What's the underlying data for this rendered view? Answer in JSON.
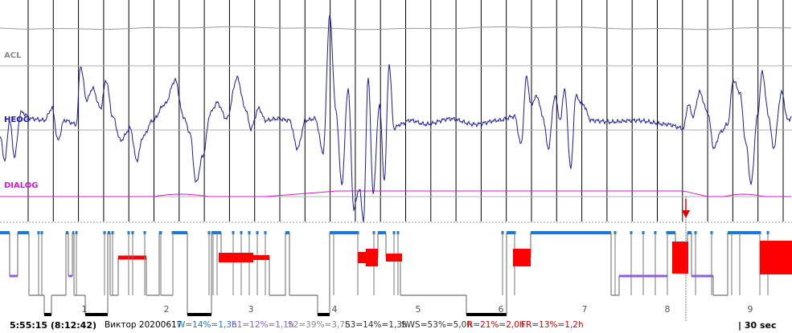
{
  "channels": {
    "acl": {
      "label": "ACL",
      "color": "#8a8a8a"
    },
    "heog": {
      "label": "HEOG",
      "color": "#1a1aa8"
    },
    "dialog": {
      "label": "DIALOG",
      "color": "#d21cc8"
    }
  },
  "hypnogram": {
    "hour_ticks": [
      "1",
      "2",
      "3",
      "4",
      "5",
      "6",
      "7",
      "8",
      "9"
    ],
    "colors": {
      "wake": "#1a78d8",
      "rem": "#ff0000",
      "sleep": "#8a8a8a",
      "s1": "#8c5fe0",
      "deep": "#000000"
    }
  },
  "status": {
    "start_time": "5:55:15 (8:12:42)",
    "record_name": "Виктор 20200617",
    "w": "W=14%=1,3h",
    "s1": "S1=12%=1,1h",
    "s2": "S2=39%=3,7h",
    "s3": "S3=14%=1,3h",
    "sws": "SWS=53%=5,0h",
    "r": "R=21%=2,0h",
    "fr": "FR=13%=1,2h",
    "epoch": "30 sec",
    "colors": {
      "w": "#1a78d8",
      "s1": "#8c5fe0",
      "s2": "#8a8a8a",
      "s3": "#333333",
      "sws": "#333333",
      "r": "#e00000",
      "fr": "#e00000"
    }
  }
}
